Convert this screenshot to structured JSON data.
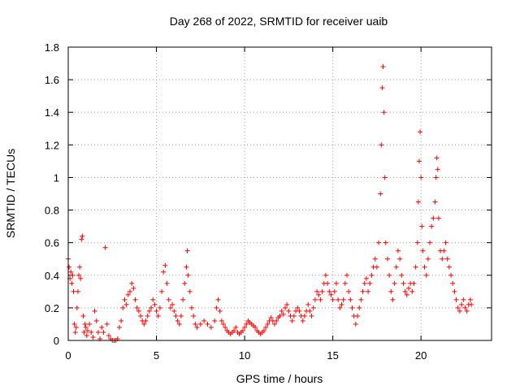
{
  "chart_data": {
    "type": "scatter",
    "title": "Day 268 of 2022, SRMTID for receiver uaib",
    "xlabel": "GPS time / hours",
    "ylabel": "SRMTID / TECUs",
    "xlim": [
      0,
      24
    ],
    "ylim": [
      0,
      1.8
    ],
    "xticks": [
      0,
      5,
      10,
      15,
      20
    ],
    "xtick_labels": [
      "0",
      "5",
      "10",
      "15",
      "20"
    ],
    "yticks": [
      0,
      0.2,
      0.4,
      0.6,
      0.8,
      1.0,
      1.2,
      1.4,
      1.6,
      1.8
    ],
    "ytick_labels": [
      "0",
      "0.2",
      "0.4",
      "0.6",
      "0.8",
      "1",
      "1.2",
      "1.4",
      "1.6",
      "1.8"
    ],
    "grid": true,
    "marker": "+",
    "marker_color": "#ff0000",
    "series": [
      {
        "name": "SRMTID",
        "points": [
          [
            0.0,
            0.5
          ],
          [
            0.05,
            0.45
          ],
          [
            0.1,
            0.38
          ],
          [
            0.15,
            0.42
          ],
          [
            0.2,
            0.35
          ],
          [
            0.25,
            0.4
          ],
          [
            0.3,
            0.3
          ],
          [
            0.35,
            0.1
          ],
          [
            0.4,
            0.05
          ],
          [
            0.45,
            0.08
          ],
          [
            0.5,
            0.2
          ],
          [
            0.55,
            0.3
          ],
          [
            0.6,
            0.4
          ],
          [
            0.65,
            0.45
          ],
          [
            0.7,
            0.38
          ],
          [
            0.75,
            0.62
          ],
          [
            0.8,
            0.64
          ],
          [
            0.85,
            0.15
          ],
          [
            0.9,
            0.05
          ],
          [
            0.95,
            0.1
          ],
          [
            1.0,
            0.08
          ],
          [
            1.05,
            0.03
          ],
          [
            1.1,
            0.06
          ],
          [
            1.2,
            0.1
          ],
          [
            1.3,
            0.05
          ],
          [
            1.4,
            0.02
          ],
          [
            1.5,
            0.18
          ],
          [
            1.6,
            0.12
          ],
          [
            1.7,
            0.05
          ],
          [
            1.8,
            0.01
          ],
          [
            1.9,
            0.08
          ],
          [
            2.0,
            0.05
          ],
          [
            2.1,
            0.57
          ],
          [
            2.2,
            0.1
          ],
          [
            2.3,
            0.03
          ],
          [
            2.4,
            0.01
          ],
          [
            2.5,
            0.0
          ],
          [
            2.6,
            0.0
          ],
          [
            2.7,
            0.0
          ],
          [
            2.8,
            0.01
          ],
          [
            2.9,
            0.08
          ],
          [
            3.0,
            0.12
          ],
          [
            3.1,
            0.2
          ],
          [
            3.2,
            0.25
          ],
          [
            3.3,
            0.22
          ],
          [
            3.4,
            0.28
          ],
          [
            3.5,
            0.3
          ],
          [
            3.6,
            0.35
          ],
          [
            3.7,
            0.32
          ],
          [
            3.8,
            0.25
          ],
          [
            3.9,
            0.2
          ],
          [
            4.0,
            0.18
          ],
          [
            4.1,
            0.15
          ],
          [
            4.2,
            0.12
          ],
          [
            4.3,
            0.1
          ],
          [
            4.4,
            0.12
          ],
          [
            4.5,
            0.15
          ],
          [
            4.6,
            0.18
          ],
          [
            4.7,
            0.2
          ],
          [
            4.8,
            0.25
          ],
          [
            4.9,
            0.22
          ],
          [
            5.0,
            0.18
          ],
          [
            5.1,
            0.15
          ],
          [
            5.2,
            0.2
          ],
          [
            5.3,
            0.3
          ],
          [
            5.4,
            0.42
          ],
          [
            5.5,
            0.46
          ],
          [
            5.6,
            0.35
          ],
          [
            5.7,
            0.25
          ],
          [
            5.8,
            0.2
          ],
          [
            5.9,
            0.22
          ],
          [
            6.0,
            0.18
          ],
          [
            6.1,
            0.15
          ],
          [
            6.2,
            0.12
          ],
          [
            6.3,
            0.1
          ],
          [
            6.4,
            0.15
          ],
          [
            6.5,
            0.25
          ],
          [
            6.6,
            0.35
          ],
          [
            6.7,
            0.45
          ],
          [
            6.75,
            0.55
          ],
          [
            6.8,
            0.4
          ],
          [
            6.9,
            0.3
          ],
          [
            7.0,
            0.2
          ],
          [
            7.1,
            0.15
          ],
          [
            7.2,
            0.1
          ],
          [
            7.3,
            0.08
          ],
          [
            7.5,
            0.1
          ],
          [
            7.7,
            0.12
          ],
          [
            7.9,
            0.1
          ],
          [
            8.1,
            0.08
          ],
          [
            8.3,
            0.12
          ],
          [
            8.4,
            0.2
          ],
          [
            8.5,
            0.25
          ],
          [
            8.6,
            0.18
          ],
          [
            8.7,
            0.12
          ],
          [
            8.8,
            0.1
          ],
          [
            8.9,
            0.08
          ],
          [
            9.0,
            0.06
          ],
          [
            9.1,
            0.05
          ],
          [
            9.2,
            0.04
          ],
          [
            9.3,
            0.05
          ],
          [
            9.4,
            0.06
          ],
          [
            9.5,
            0.08
          ],
          [
            9.6,
            0.05
          ],
          [
            9.7,
            0.04
          ],
          [
            9.8,
            0.05
          ],
          [
            9.9,
            0.06
          ],
          [
            10.0,
            0.08
          ],
          [
            10.1,
            0.1
          ],
          [
            10.2,
            0.12
          ],
          [
            10.3,
            0.11
          ],
          [
            10.4,
            0.1
          ],
          [
            10.5,
            0.09
          ],
          [
            10.6,
            0.08
          ],
          [
            10.7,
            0.06
          ],
          [
            10.8,
            0.05
          ],
          [
            10.9,
            0.04
          ],
          [
            11.0,
            0.05
          ],
          [
            11.1,
            0.06
          ],
          [
            11.2,
            0.08
          ],
          [
            11.3,
            0.1
          ],
          [
            11.4,
            0.12
          ],
          [
            11.5,
            0.14
          ],
          [
            11.6,
            0.12
          ],
          [
            11.7,
            0.1
          ],
          [
            11.8,
            0.12
          ],
          [
            11.9,
            0.14
          ],
          [
            12.0,
            0.15
          ],
          [
            12.1,
            0.18
          ],
          [
            12.2,
            0.16
          ],
          [
            12.3,
            0.2
          ],
          [
            12.4,
            0.22
          ],
          [
            12.5,
            0.18
          ],
          [
            12.6,
            0.15
          ],
          [
            12.7,
            0.12
          ],
          [
            12.8,
            0.15
          ],
          [
            12.9,
            0.18
          ],
          [
            13.0,
            0.2
          ],
          [
            13.1,
            0.18
          ],
          [
            13.2,
            0.15
          ],
          [
            13.3,
            0.12
          ],
          [
            13.4,
            0.15
          ],
          [
            13.5,
            0.18
          ],
          [
            13.6,
            0.22
          ],
          [
            13.7,
            0.18
          ],
          [
            13.8,
            0.15
          ],
          [
            13.9,
            0.2
          ],
          [
            14.0,
            0.25
          ],
          [
            14.1,
            0.3
          ],
          [
            14.2,
            0.28
          ],
          [
            14.3,
            0.25
          ],
          [
            14.4,
            0.3
          ],
          [
            14.5,
            0.35
          ],
          [
            14.6,
            0.4
          ],
          [
            14.7,
            0.35
          ],
          [
            14.8,
            0.3
          ],
          [
            14.9,
            0.28
          ],
          [
            15.0,
            0.25
          ],
          [
            15.1,
            0.3
          ],
          [
            15.2,
            0.35
          ],
          [
            15.3,
            0.25
          ],
          [
            15.4,
            0.2
          ],
          [
            15.5,
            0.22
          ],
          [
            15.6,
            0.25
          ],
          [
            15.7,
            0.35
          ],
          [
            15.8,
            0.4
          ],
          [
            15.9,
            0.3
          ],
          [
            16.0,
            0.25
          ],
          [
            16.1,
            0.2
          ],
          [
            16.2,
            0.15
          ],
          [
            16.3,
            0.1
          ],
          [
            16.4,
            0.15
          ],
          [
            16.5,
            0.2
          ],
          [
            16.6,
            0.25
          ],
          [
            16.7,
            0.3
          ],
          [
            16.8,
            0.35
          ],
          [
            16.9,
            0.38
          ],
          [
            17.0,
            0.3
          ],
          [
            17.1,
            0.35
          ],
          [
            17.2,
            0.4
          ],
          [
            17.3,
            0.45
          ],
          [
            17.4,
            0.5
          ],
          [
            17.5,
            0.45
          ],
          [
            17.6,
            0.6
          ],
          [
            17.7,
            0.9
          ],
          [
            17.75,
            1.2
          ],
          [
            17.8,
            1.55
          ],
          [
            17.85,
            1.68
          ],
          [
            17.9,
            1.4
          ],
          [
            17.95,
            1.0
          ],
          [
            18.0,
            0.6
          ],
          [
            18.1,
            0.5
          ],
          [
            18.2,
            0.4
          ],
          [
            18.3,
            0.3
          ],
          [
            18.4,
            0.25
          ],
          [
            18.5,
            0.35
          ],
          [
            18.6,
            0.45
          ],
          [
            18.7,
            0.55
          ],
          [
            18.8,
            0.5
          ],
          [
            18.9,
            0.4
          ],
          [
            19.0,
            0.35
          ],
          [
            19.1,
            0.3
          ],
          [
            19.2,
            0.28
          ],
          [
            19.3,
            0.32
          ],
          [
            19.4,
            0.35
          ],
          [
            19.5,
            0.3
          ],
          [
            19.6,
            0.35
          ],
          [
            19.7,
            0.45
          ],
          [
            19.8,
            0.6
          ],
          [
            19.85,
            0.85
          ],
          [
            19.9,
            1.1
          ],
          [
            19.95,
            1.28
          ],
          [
            20.0,
            1.0
          ],
          [
            20.05,
            0.7
          ],
          [
            20.1,
            0.55
          ],
          [
            20.2,
            0.45
          ],
          [
            20.3,
            0.4
          ],
          [
            20.4,
            0.5
          ],
          [
            20.5,
            0.6
          ],
          [
            20.6,
            0.7
          ],
          [
            20.7,
            0.75
          ],
          [
            20.8,
            0.85
          ],
          [
            20.85,
            1.0
          ],
          [
            20.9,
            1.12
          ],
          [
            20.95,
            1.05
          ],
          [
            21.0,
            0.75
          ],
          [
            21.1,
            0.55
          ],
          [
            21.2,
            0.5
          ],
          [
            21.3,
            0.55
          ],
          [
            21.4,
            0.6
          ],
          [
            21.5,
            0.5
          ],
          [
            21.6,
            0.45
          ],
          [
            21.7,
            0.4
          ],
          [
            21.8,
            0.35
          ],
          [
            21.9,
            0.3
          ],
          [
            22.0,
            0.25
          ],
          [
            22.1,
            0.2
          ],
          [
            22.2,
            0.18
          ],
          [
            22.3,
            0.22
          ],
          [
            22.4,
            0.25
          ],
          [
            22.5,
            0.2
          ],
          [
            22.6,
            0.18
          ],
          [
            22.7,
            0.22
          ],
          [
            22.8,
            0.25
          ],
          [
            22.85,
            0.22
          ]
        ]
      }
    ]
  }
}
